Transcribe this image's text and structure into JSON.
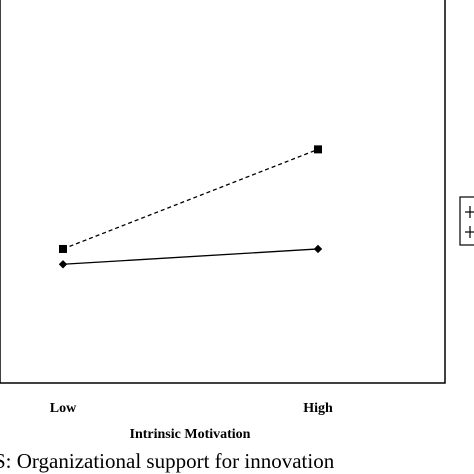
{
  "caption": "S: Organizational support for innovation",
  "chart_data": {
    "type": "line",
    "title": "",
    "xlabel": "Intrinsic Motivation",
    "ylabel": "",
    "categories": [
      "Low",
      "High"
    ],
    "ylim": [
      0,
      10
    ],
    "grid": false,
    "legend": "right (partially cropped, labels not visible)",
    "series": [
      {
        "values": [
          3.5,
          6.1
        ],
        "style": "dashed",
        "marker": "square",
        "color": "#000000"
      },
      {
        "values": [
          3.1,
          3.5
        ],
        "style": "solid",
        "marker": "diamond",
        "color": "#000000"
      }
    ]
  }
}
